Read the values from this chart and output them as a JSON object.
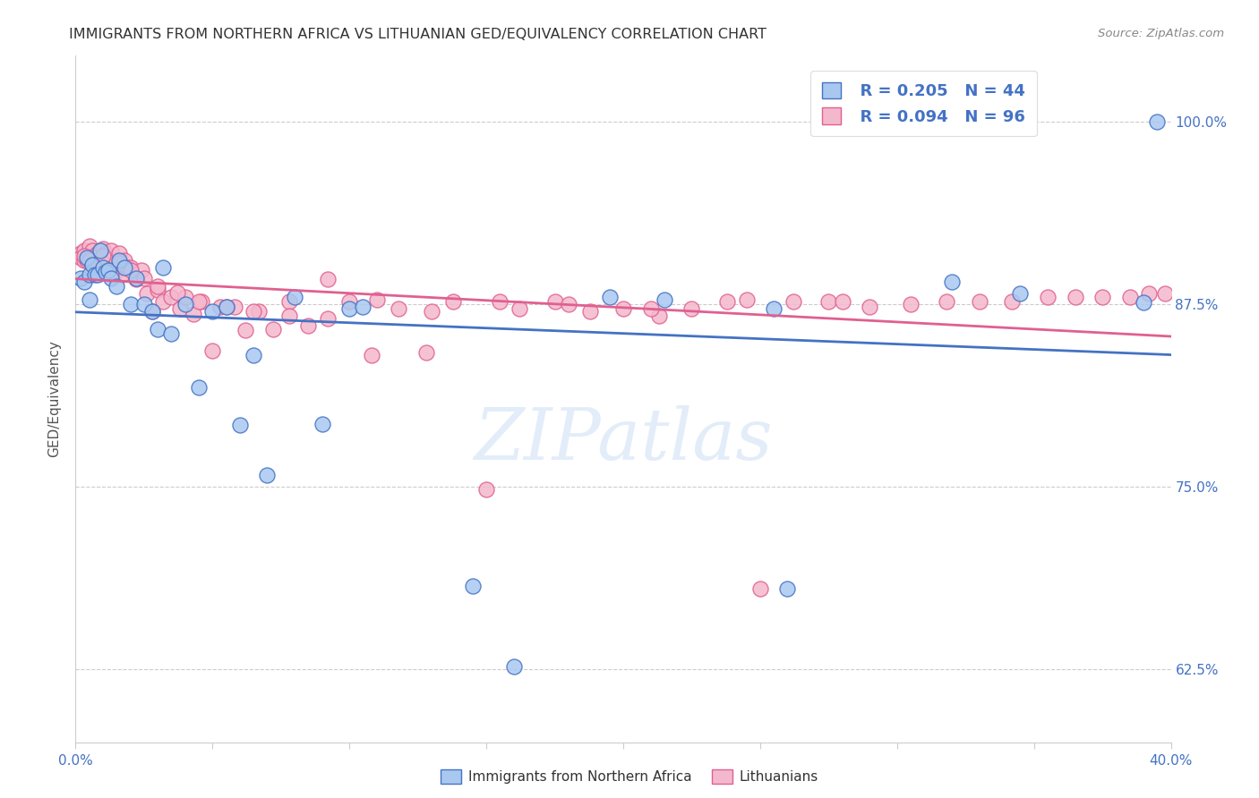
{
  "title": "IMMIGRANTS FROM NORTHERN AFRICA VS LITHUANIAN GED/EQUIVALENCY CORRELATION CHART",
  "source": "Source: ZipAtlas.com",
  "ylabel": "GED/Equivalency",
  "ytick_values": [
    0.625,
    0.75,
    0.875,
    1.0
  ],
  "ytick_labels": [
    "62.5%",
    "75.0%",
    "87.5%",
    "100.0%"
  ],
  "xtick_left_label": "0.0%",
  "xtick_right_label": "40.0%",
  "legend_label1": "Immigrants from Northern Africa",
  "legend_label2": "Lithuanians",
  "legend_R1": "R = 0.205",
  "legend_N1": "N = 44",
  "legend_R2": "R = 0.094",
  "legend_N2": "N = 96",
  "color_blue": "#A8C8F0",
  "color_pink": "#F4B8CC",
  "line_color_blue": "#4472C4",
  "line_color_pink": "#E06090",
  "xmin": 0.0,
  "xmax": 0.4,
  "ymin": 0.575,
  "ymax": 1.045,
  "blue_x": [
    0.002,
    0.003,
    0.004,
    0.005,
    0.005,
    0.006,
    0.007,
    0.008,
    0.009,
    0.01,
    0.011,
    0.012,
    0.013,
    0.015,
    0.016,
    0.018,
    0.02,
    0.022,
    0.025,
    0.028,
    0.03,
    0.032,
    0.035,
    0.04,
    0.045,
    0.05,
    0.055,
    0.06,
    0.065,
    0.07,
    0.08,
    0.09,
    0.1,
    0.105,
    0.145,
    0.16,
    0.195,
    0.215,
    0.255,
    0.26,
    0.32,
    0.345,
    0.39,
    0.395
  ],
  "blue_y": [
    0.893,
    0.89,
    0.907,
    0.895,
    0.878,
    0.902,
    0.895,
    0.895,
    0.912,
    0.9,
    0.897,
    0.898,
    0.893,
    0.887,
    0.905,
    0.9,
    0.875,
    0.893,
    0.875,
    0.87,
    0.858,
    0.9,
    0.855,
    0.875,
    0.818,
    0.87,
    0.873,
    0.792,
    0.84,
    0.758,
    0.88,
    0.793,
    0.872,
    0.873,
    0.682,
    0.627,
    0.88,
    0.878,
    0.872,
    0.68,
    0.89,
    0.882,
    0.876,
    1.0
  ],
  "pink_x": [
    0.002,
    0.002,
    0.003,
    0.003,
    0.004,
    0.004,
    0.005,
    0.005,
    0.006,
    0.006,
    0.007,
    0.008,
    0.008,
    0.009,
    0.01,
    0.01,
    0.011,
    0.011,
    0.012,
    0.013,
    0.014,
    0.015,
    0.016,
    0.017,
    0.018,
    0.019,
    0.02,
    0.022,
    0.024,
    0.026,
    0.028,
    0.03,
    0.032,
    0.035,
    0.038,
    0.04,
    0.043,
    0.046,
    0.05,
    0.053,
    0.058,
    0.062,
    0.067,
    0.072,
    0.078,
    0.085,
    0.092,
    0.1,
    0.108,
    0.118,
    0.128,
    0.138,
    0.15,
    0.162,
    0.175,
    0.188,
    0.2,
    0.213,
    0.225,
    0.238,
    0.25,
    0.262,
    0.275,
    0.29,
    0.305,
    0.318,
    0.33,
    0.342,
    0.355,
    0.365,
    0.375,
    0.385,
    0.392,
    0.398,
    0.003,
    0.005,
    0.007,
    0.01,
    0.013,
    0.016,
    0.02,
    0.025,
    0.03,
    0.037,
    0.045,
    0.055,
    0.065,
    0.078,
    0.092,
    0.11,
    0.13,
    0.155,
    0.18,
    0.21,
    0.245,
    0.28
  ],
  "pink_y": [
    0.91,
    0.907,
    0.905,
    0.912,
    0.905,
    0.908,
    0.908,
    0.915,
    0.908,
    0.912,
    0.908,
    0.91,
    0.905,
    0.912,
    0.908,
    0.913,
    0.91,
    0.908,
    0.905,
    0.912,
    0.895,
    0.905,
    0.91,
    0.895,
    0.905,
    0.9,
    0.9,
    0.892,
    0.898,
    0.882,
    0.87,
    0.885,
    0.877,
    0.88,
    0.872,
    0.88,
    0.868,
    0.877,
    0.843,
    0.873,
    0.873,
    0.857,
    0.87,
    0.858,
    0.877,
    0.86,
    0.892,
    0.877,
    0.84,
    0.872,
    0.842,
    0.877,
    0.748,
    0.872,
    0.877,
    0.87,
    0.872,
    0.867,
    0.872,
    0.877,
    0.68,
    0.877,
    0.877,
    0.873,
    0.875,
    0.877,
    0.877,
    0.877,
    0.88,
    0.88,
    0.88,
    0.88,
    0.882,
    0.882,
    0.908,
    0.905,
    0.9,
    0.908,
    0.895,
    0.903,
    0.898,
    0.893,
    0.887,
    0.883,
    0.877,
    0.873,
    0.87,
    0.867,
    0.865,
    0.878,
    0.87,
    0.877,
    0.875,
    0.872,
    0.878,
    0.877
  ]
}
